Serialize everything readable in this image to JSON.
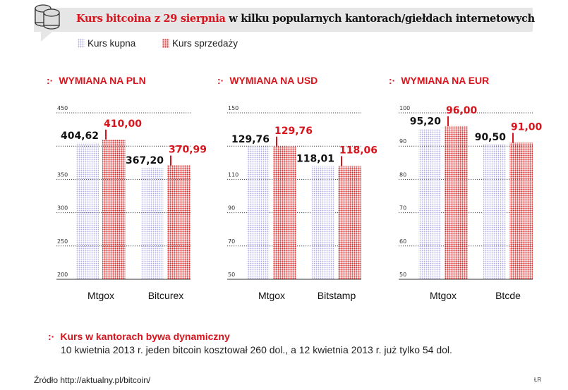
{
  "header": {
    "title_highlight": "Kurs bitcoina z 29 sierpnia",
    "title_rest": " w kilku popularnych kantorach/giełdach internetowych",
    "icon": "coins-stack-icon"
  },
  "legend": {
    "buy": "Kurs kupna",
    "sell": "Kurs sprzedaży"
  },
  "colors": {
    "buy": "#a9a6e6",
    "sell": "#d42a2a",
    "accent": "#d8141c"
  },
  "sections": [
    {
      "marker": ":·",
      "title": "WYMIANA NA PLN"
    },
    {
      "marker": ":·",
      "title": "WYMIANA NA USD"
    },
    {
      "marker": ":·",
      "title": "WYMIANA NA EUR"
    }
  ],
  "chart_data": [
    {
      "type": "bar",
      "title": "WYMIANA NA PLN",
      "categories": [
        "Mtgox",
        "Bitcurex"
      ],
      "series": [
        {
          "name": "Kurs kupna",
          "values": [
            404.62,
            367.2
          ],
          "labels": [
            "404,62",
            "367,20"
          ]
        },
        {
          "name": "Kurs sprzedaży",
          "values": [
            410.0,
            370.99
          ],
          "labels": [
            "410,00",
            "370,99"
          ]
        }
      ],
      "ylim": [
        200,
        450
      ],
      "ticks": [
        {
          "v": 450,
          "label": "450"
        },
        {
          "v": 400,
          "label": ""
        },
        {
          "v": 350,
          "label": "350"
        },
        {
          "v": 300,
          "label": "300"
        },
        {
          "v": 250,
          "label": "250"
        },
        {
          "v": 200,
          "label": "200"
        }
      ],
      "grid": true
    },
    {
      "type": "bar",
      "title": "WYMIANA NA USD",
      "categories": [
        "Mtgox",
        "Bitstamp"
      ],
      "series": [
        {
          "name": "Kurs kupna",
          "values": [
            129.76,
            118.01
          ],
          "labels": [
            "129,76",
            "118,01"
          ]
        },
        {
          "name": "Kurs sprzedaży",
          "values": [
            129.76,
            118.06
          ],
          "labels": [
            "129,76",
            "118,06"
          ]
        }
      ],
      "ylim": [
        50,
        150
      ],
      "ticks": [
        {
          "v": 150,
          "label": "150"
        },
        {
          "v": 130,
          "label": ""
        },
        {
          "v": 110,
          "label": "110"
        },
        {
          "v": 90,
          "label": "90"
        },
        {
          "v": 70,
          "label": "70"
        },
        {
          "v": 50,
          "label": "50"
        }
      ],
      "grid": true
    },
    {
      "type": "bar",
      "title": "WYMIANA NA EUR",
      "categories": [
        "Mtgox",
        "Btcde"
      ],
      "series": [
        {
          "name": "Kurs kupna",
          "values": [
            95.2,
            90.5
          ],
          "labels": [
            "95,20",
            "90,50"
          ]
        },
        {
          "name": "Kurs sprzedaży",
          "values": [
            96.0,
            91.0
          ],
          "labels": [
            "96,00",
            "91,00"
          ]
        }
      ],
      "ylim": [
        50,
        100
      ],
      "ticks": [
        {
          "v": 100,
          "label": "100"
        },
        {
          "v": 90,
          "label": "90"
        },
        {
          "v": 80,
          "label": "80"
        },
        {
          "v": 70,
          "label": "70"
        },
        {
          "v": 60,
          "label": "60"
        },
        {
          "v": 50,
          "label": "50"
        }
      ],
      "grid": true
    }
  ],
  "note": {
    "marker": ":·",
    "title": "Kurs w kantorach bywa dynamiczny",
    "text": "10 kwietnia 2013 r. jeden bitcoin kosztował 260 dol., a 12 kwietnia 2013 r. już tylko 54 dol."
  },
  "source": "Źródło http://aktualny.pl/bitcoin/",
  "author": "ŁR"
}
